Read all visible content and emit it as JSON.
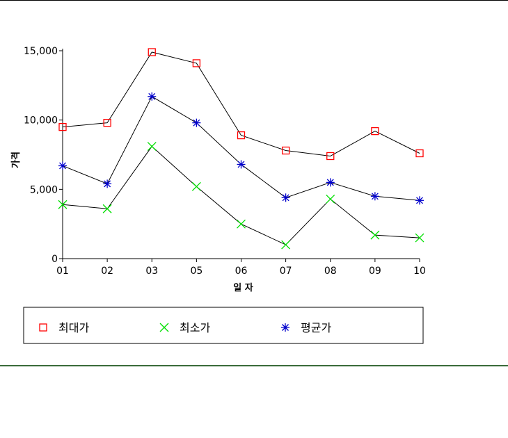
{
  "chart_data": {
    "type": "line",
    "categories": [
      "01",
      "02",
      "03",
      "05",
      "06",
      "07",
      "08",
      "09",
      "10"
    ],
    "series": [
      {
        "name": "최대가",
        "marker": "square",
        "color": "#ff0000",
        "values": [
          9500,
          9800,
          14900,
          14100,
          8900,
          7800,
          7400,
          9200,
          7600
        ]
      },
      {
        "name": "최소가",
        "marker": "x",
        "color": "#00e000",
        "values": [
          3900,
          3600,
          8100,
          5200,
          2500,
          1000,
          4300,
          1700,
          1500
        ]
      },
      {
        "name": "평균가",
        "marker": "asterisk",
        "color": "#0000cc",
        "values": [
          6700,
          5400,
          11700,
          9800,
          6800,
          4400,
          5500,
          4500,
          4200
        ]
      }
    ],
    "yticks": [
      "0",
      "5,000",
      "10,000",
      "15,000"
    ],
    "ytick_values": [
      0,
      5000,
      10000,
      15000
    ],
    "ylim": [
      0,
      15000
    ],
    "xlabel": "일 자",
    "ylabel": "가격",
    "line_color": "#000000",
    "legend_position": "bottom"
  }
}
